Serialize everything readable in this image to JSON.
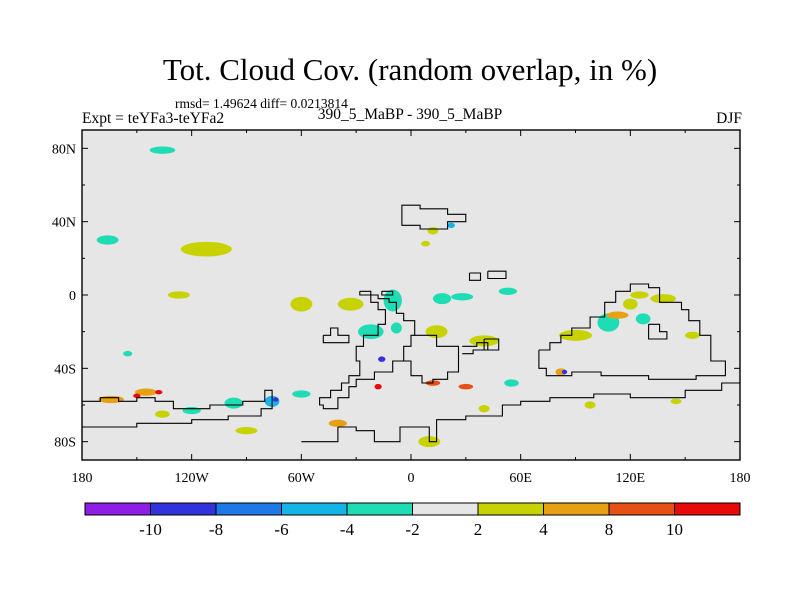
{
  "title": "Tot. Cloud Cov. (random overlap, in %)",
  "stats": "rmsd= 1.49624 diff= 0.0213814",
  "experiment": "Expt = teYFa3-teYFa2",
  "cases": "390_5_MaBP - 390_5_MaBP",
  "season": "DJF",
  "chart_data": {
    "type": "heatmap",
    "title": "Tot. Cloud Cov. (random overlap, in %)",
    "subtitle": "390_5_MaBP - 390_5_MaBP",
    "xlabel": "",
    "ylabel": "",
    "xlim": [
      -180,
      180
    ],
    "ylim": [
      -90,
      90
    ],
    "x_ticks": [
      {
        "value": -180,
        "label": "180"
      },
      {
        "value": -120,
        "label": "120W"
      },
      {
        "value": -60,
        "label": "60W"
      },
      {
        "value": 0,
        "label": "0"
      },
      {
        "value": 60,
        "label": "60E"
      },
      {
        "value": 120,
        "label": "120E"
      },
      {
        "value": 180,
        "label": "180"
      }
    ],
    "y_ticks": [
      {
        "value": 80,
        "label": "80N"
      },
      {
        "value": 40,
        "label": "40N"
      },
      {
        "value": 0,
        "label": "0"
      },
      {
        "value": -40,
        "label": "40S"
      },
      {
        "value": -80,
        "label": "80S"
      }
    ],
    "colorbar": {
      "levels": [
        -10,
        -8,
        -6,
        -4,
        -2,
        2,
        4,
        8,
        10
      ],
      "labels": [
        "-10",
        "-8",
        "-6",
        "-4",
        "-2",
        "2",
        "4",
        "8",
        "10"
      ],
      "colors": [
        "#8c1ee6",
        "#3232dc",
        "#1e78e6",
        "#14b4e6",
        "#1edcb4",
        "#e6e6e6",
        "#c8d200",
        "#e6a014",
        "#e65014",
        "#e60a0a"
      ]
    },
    "regions": [
      {
        "lon": -136,
        "lat": 79,
        "rlon": 7,
        "rlat": 2,
        "level": "-4..-2"
      },
      {
        "lon": -166,
        "lat": 30,
        "rlon": 6,
        "rlat": 2.5,
        "level": "-4..-2"
      },
      {
        "lon": -112,
        "lat": 25,
        "rlon": 14,
        "rlat": 4,
        "level": "2..4"
      },
      {
        "lon": -127,
        "lat": 0,
        "rlon": 6,
        "rlat": 2,
        "level": "2..4"
      },
      {
        "lon": -155,
        "lat": -32,
        "rlon": 2.5,
        "rlat": 1.5,
        "level": "-4..-2"
      },
      {
        "lon": -60,
        "lat": -5,
        "rlon": 6,
        "rlat": 4,
        "level": "2..4"
      },
      {
        "lon": -33,
        "lat": -5,
        "rlon": 7,
        "rlat": 3.5,
        "level": "2..4"
      },
      {
        "lon": -10,
        "lat": -3,
        "rlon": 5,
        "rlat": 6,
        "level": "-4..-2"
      },
      {
        "lon": -22,
        "lat": -20,
        "rlon": 7,
        "rlat": 4,
        "level": "-4..-2"
      },
      {
        "lon": -8,
        "lat": -18,
        "rlon": 3,
        "rlat": 3,
        "level": "-4..-2"
      },
      {
        "lon": 17,
        "lat": -2,
        "rlon": 5,
        "rlat": 3,
        "level": "-4..-2"
      },
      {
        "lon": 14,
        "lat": -20,
        "rlon": 6,
        "rlat": 3.5,
        "level": "2..4"
      },
      {
        "lon": 40,
        "lat": -25,
        "rlon": 8,
        "rlat": 3,
        "level": "2..4"
      },
      {
        "lon": 12,
        "lat": 35,
        "rlon": 3,
        "rlat": 2,
        "level": "2..4"
      },
      {
        "lon": 22,
        "lat": 38,
        "rlon": 2,
        "rlat": 1.5,
        "level": "-6..-4"
      },
      {
        "lon": 8,
        "lat": 28,
        "rlon": 2.5,
        "rlat": 1.5,
        "level": "2..4"
      },
      {
        "lon": 28,
        "lat": -1,
        "rlon": 6,
        "rlat": 2,
        "level": "-4..-2"
      },
      {
        "lon": 53,
        "lat": 2,
        "rlon": 5,
        "rlat": 2,
        "level": "-4..-2"
      },
      {
        "lon": 90,
        "lat": -22,
        "rlon": 9,
        "rlat": 3,
        "level": "2..4"
      },
      {
        "lon": 108,
        "lat": -15,
        "rlon": 6,
        "rlat": 5,
        "level": "-4..-2"
      },
      {
        "lon": 127,
        "lat": -13,
        "rlon": 4,
        "rlat": 3,
        "level": "-4..-2"
      },
      {
        "lon": 120,
        "lat": -5,
        "rlon": 4,
        "rlat": 3,
        "level": "2..4"
      },
      {
        "lon": 125,
        "lat": 0,
        "rlon": 5,
        "rlat": 2,
        "level": "2..4"
      },
      {
        "lon": 138,
        "lat": -2,
        "rlon": 7,
        "rlat": 2.5,
        "level": "2..4"
      },
      {
        "lon": 113,
        "lat": -11,
        "rlon": 6,
        "rlat": 2,
        "level": "4..8"
      },
      {
        "lon": 154,
        "lat": -22,
        "rlon": 4,
        "rlat": 2,
        "level": "2..4"
      },
      {
        "lon": -164,
        "lat": -57,
        "rlon": 7,
        "rlat": 2,
        "level": "4..8"
      },
      {
        "lon": -145,
        "lat": -53,
        "rlon": 6,
        "rlat": 2,
        "level": "4..8"
      },
      {
        "lon": -150,
        "lat": -55,
        "rlon": 2,
        "rlat": 1.2,
        "level": ">10"
      },
      {
        "lon": -138,
        "lat": -53,
        "rlon": 2,
        "rlat": 1.2,
        "level": ">10"
      },
      {
        "lon": -120,
        "lat": -63,
        "rlon": 5,
        "rlat": 2,
        "level": "-4..-2"
      },
      {
        "lon": -136,
        "lat": -65,
        "rlon": 4,
        "rlat": 2,
        "level": "2..4"
      },
      {
        "lon": -97,
        "lat": -59,
        "rlon": 5,
        "rlat": 3,
        "level": "-4..-2"
      },
      {
        "lon": -76,
        "lat": -58,
        "rlon": 4,
        "rlat": 3,
        "level": "-6..-4"
      },
      {
        "lon": -74,
        "lat": -57,
        "rlon": 1.5,
        "rlat": 1.2,
        "level": "-10..-8"
      },
      {
        "lon": -90,
        "lat": -74,
        "rlon": 6,
        "rlat": 2,
        "level": "2..4"
      },
      {
        "lon": -60,
        "lat": -54,
        "rlon": 5,
        "rlat": 2,
        "level": "-4..-2"
      },
      {
        "lon": -18,
        "lat": -50,
        "rlon": 2,
        "rlat": 1.5,
        "level": ">10"
      },
      {
        "lon": -16,
        "lat": -35,
        "rlon": 2,
        "rlat": 1.5,
        "level": "-10..-8"
      },
      {
        "lon": 12,
        "lat": -48,
        "rlon": 4,
        "rlat": 1.5,
        "level": "8..10"
      },
      {
        "lon": 30,
        "lat": -50,
        "rlon": 4,
        "rlat": 1.5,
        "level": "8..10"
      },
      {
        "lon": 40,
        "lat": -62,
        "rlon": 3,
        "rlat": 2,
        "level": "2..4"
      },
      {
        "lon": 55,
        "lat": -48,
        "rlon": 4,
        "rlat": 2,
        "level": "-4..-2"
      },
      {
        "lon": 82,
        "lat": -42,
        "rlon": 3,
        "rlat": 2,
        "level": "4..8"
      },
      {
        "lon": 84,
        "lat": -42,
        "rlon": 1.5,
        "rlat": 1.2,
        "level": "-10..-8"
      },
      {
        "lon": 98,
        "lat": -60,
        "rlon": 3,
        "rlat": 2,
        "level": "2..4"
      },
      {
        "lon": 145,
        "lat": -58,
        "rlon": 3,
        "rlat": 1.5,
        "level": "2..4"
      },
      {
        "lon": 10,
        "lat": -80,
        "rlon": 6,
        "rlat": 3,
        "level": "2..4"
      },
      {
        "lon": -40,
        "lat": -70,
        "rlon": 5,
        "rlat": 2,
        "level": "4..8"
      }
    ],
    "coastlines": true
  }
}
